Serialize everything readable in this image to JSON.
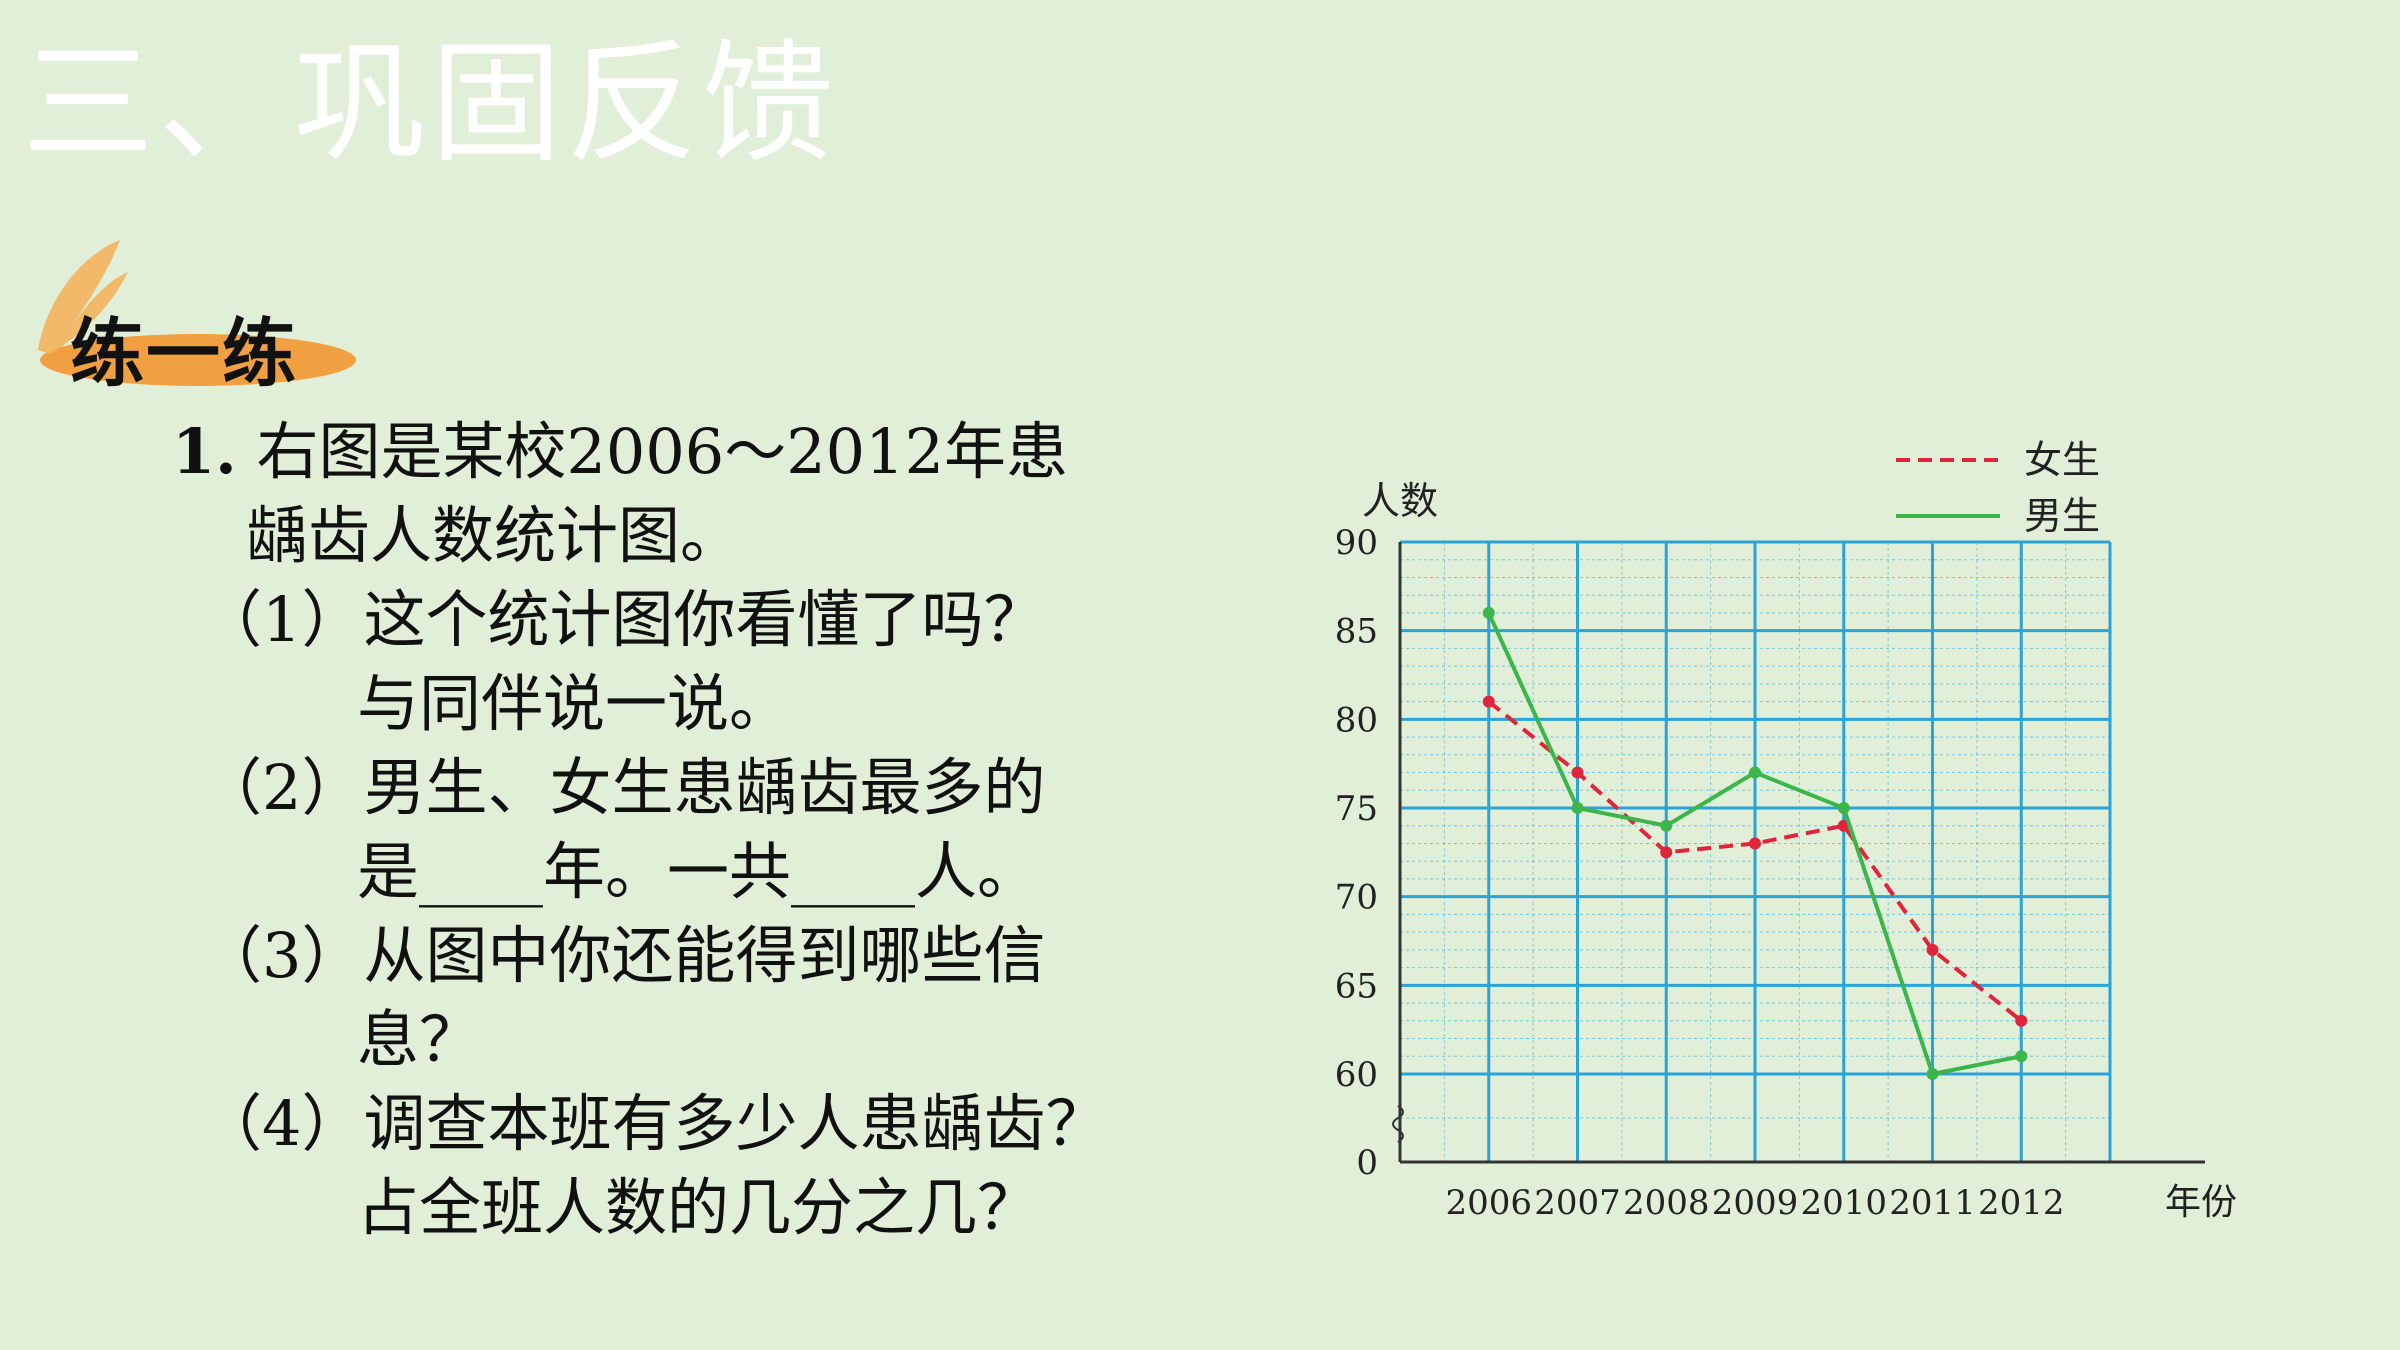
{
  "slide": {
    "title": "三、巩固反馈",
    "section_label": "练一练"
  },
  "question": {
    "main_number": "1.",
    "main_text_line1": "右图是某校2006～2012年患",
    "main_text_line2": "龋齿人数统计图。",
    "sub": [
      {
        "num": "（1）",
        "line1": "这个统计图你看懂了吗？",
        "line2": "与同伴说一说。"
      },
      {
        "num": "（2）",
        "line1": "男生、女生患龋齿最多的",
        "line2": "是____年。一共____人。"
      },
      {
        "num": "（3）",
        "line1": "从图中你还能得到哪些信",
        "line2": "息？"
      },
      {
        "num": "（4）",
        "line1": "调查本班有多少人患龋齿？",
        "line2": "占全班人数的几分之几？"
      }
    ]
  },
  "colors": {
    "background": "#e1efd9",
    "grid": "#2aa3d8",
    "female": "#e0243c",
    "male": "#3cb54a",
    "badge": "#f0a040"
  },
  "chart_data": {
    "type": "line",
    "ylabel": "人数",
    "xlabel": "年份",
    "categories": [
      "2006",
      "2007",
      "2008",
      "2009",
      "2010",
      "2011",
      "2012"
    ],
    "yticks": [
      "0",
      "60",
      "65",
      "70",
      "75",
      "80",
      "85",
      "90"
    ],
    "ylim": [
      60,
      90
    ],
    "axis_break": true,
    "grid": true,
    "legend_position": "top-right",
    "series": [
      {
        "name": "女生",
        "style": "dashed",
        "color": "#e0243c",
        "values": [
          81,
          77,
          72.5,
          73,
          74,
          67,
          63
        ]
      },
      {
        "name": "男生",
        "style": "solid",
        "color": "#3cb54a",
        "values": [
          86,
          75,
          74,
          77,
          75,
          60,
          61
        ]
      }
    ]
  }
}
